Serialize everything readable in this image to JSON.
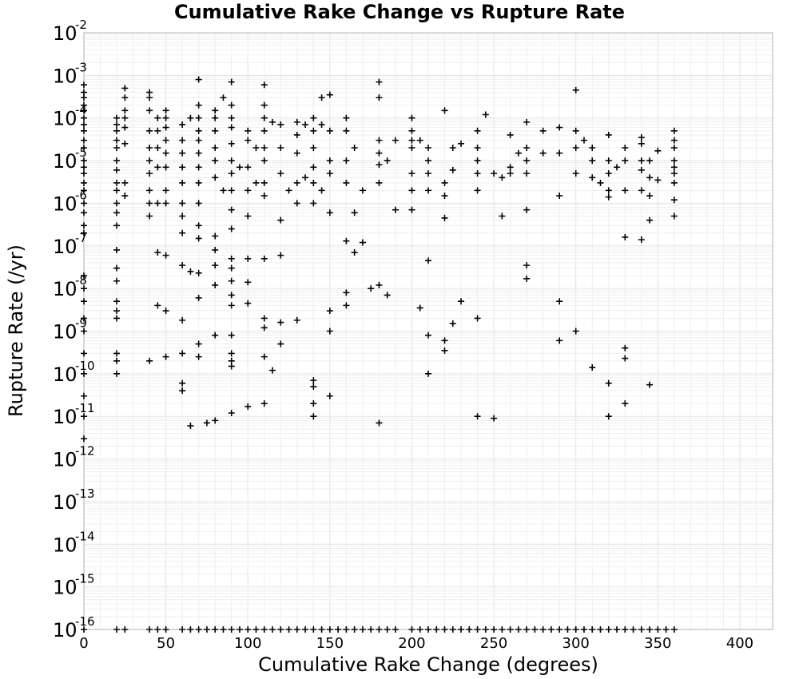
{
  "chart_data": {
    "type": "scatter",
    "title": "Cumulative Rake Change vs Rupture Rate",
    "xlabel": "Cumulative Rake Change (degrees)",
    "ylabel": "Rupture Rate (/yr)",
    "xlim": [
      0,
      420
    ],
    "ylim": [
      1e-16,
      0.01
    ],
    "y_scale": "log",
    "grid": true,
    "marker": "plus",
    "x_ticks": [
      "0",
      "50",
      "100",
      "150",
      "200",
      "250",
      "300",
      "350",
      "400"
    ],
    "y_ticks": [
      {
        "base": "10",
        "exp": "-16"
      },
      {
        "base": "10",
        "exp": "-15"
      },
      {
        "base": "10",
        "exp": "-14"
      },
      {
        "base": "10",
        "exp": "-13"
      },
      {
        "base": "10",
        "exp": "-12"
      },
      {
        "base": "10",
        "exp": "-11"
      },
      {
        "base": "10",
        "exp": "-10"
      },
      {
        "base": "10",
        "exp": "-9"
      },
      {
        "base": "10",
        "exp": "-8"
      },
      {
        "base": "10",
        "exp": "-7"
      },
      {
        "base": "10",
        "exp": "-6"
      },
      {
        "base": "10",
        "exp": "-5"
      },
      {
        "base": "10",
        "exp": "-4"
      },
      {
        "base": "10",
        "exp": "-3"
      },
      {
        "base": "10",
        "exp": "-2"
      }
    ],
    "points": [
      [
        0,
        0.0006
      ],
      [
        0,
        0.0004
      ],
      [
        0,
        0.0003
      ],
      [
        0,
        0.0002
      ],
      [
        0,
        0.00015
      ],
      [
        0,
        0.0001
      ],
      [
        0,
        7e-05
      ],
      [
        0,
        5e-05
      ],
      [
        0,
        3e-05
      ],
      [
        0,
        2e-05
      ],
      [
        0,
        1e-05
      ],
      [
        0,
        7e-06
      ],
      [
        0,
        5e-06
      ],
      [
        0,
        3e-06
      ],
      [
        0,
        2e-06
      ],
      [
        0,
        1e-06
      ],
      [
        0,
        6e-07
      ],
      [
        0,
        3e-07
      ],
      [
        0,
        2e-07
      ],
      [
        0,
        2e-08
      ],
      [
        0,
        1e-08
      ],
      [
        0,
        5e-09
      ],
      [
        0,
        2e-09
      ],
      [
        0,
        1e-09
      ],
      [
        0,
        3e-10
      ],
      [
        0,
        1e-10
      ],
      [
        0,
        3e-11
      ],
      [
        0,
        1e-11
      ],
      [
        0,
        3e-12
      ],
      [
        20,
        0.0001
      ],
      [
        20,
        7e-05
      ],
      [
        20,
        5e-05
      ],
      [
        20,
        3e-05
      ],
      [
        20,
        2e-05
      ],
      [
        20,
        1e-05
      ],
      [
        20,
        6e-06
      ],
      [
        20,
        3e-06
      ],
      [
        20,
        2e-06
      ],
      [
        20,
        1e-06
      ],
      [
        20,
        6e-07
      ],
      [
        20,
        3e-07
      ],
      [
        20,
        8e-08
      ],
      [
        20,
        3e-08
      ],
      [
        20,
        1.5e-08
      ],
      [
        20,
        5e-09
      ],
      [
        20,
        3e-09
      ],
      [
        20,
        2e-09
      ],
      [
        20,
        3e-10
      ],
      [
        20,
        2e-10
      ],
      [
        20,
        1e-10
      ],
      [
        25,
        0.0005
      ],
      [
        25,
        0.0003
      ],
      [
        25,
        0.00015
      ],
      [
        25,
        0.0001
      ],
      [
        25,
        6e-05
      ],
      [
        25,
        2.5e-05
      ],
      [
        25,
        3e-06
      ],
      [
        25,
        1.5e-06
      ],
      [
        40,
        0.0004
      ],
      [
        40,
        0.0003
      ],
      [
        40,
        0.00015
      ],
      [
        40,
        5e-05
      ],
      [
        40,
        2e-05
      ],
      [
        40,
        1e-05
      ],
      [
        40,
        5e-06
      ],
      [
        40,
        2e-06
      ],
      [
        40,
        1e-06
      ],
      [
        40,
        5e-07
      ],
      [
        40,
        2e-10
      ],
      [
        45,
        0.0001
      ],
      [
        45,
        5e-05
      ],
      [
        45,
        2e-05
      ],
      [
        45,
        7e-06
      ],
      [
        45,
        1e-06
      ],
      [
        45,
        7e-08
      ],
      [
        45,
        4e-09
      ],
      [
        50,
        0.00015
      ],
      [
        50,
        0.0001
      ],
      [
        50,
        6e-05
      ],
      [
        50,
        3e-05
      ],
      [
        50,
        1.5e-05
      ],
      [
        50,
        7e-06
      ],
      [
        50,
        2e-06
      ],
      [
        50,
        1e-06
      ],
      [
        50,
        6e-08
      ],
      [
        50,
        3e-09
      ],
      [
        50,
        2.5e-10
      ],
      [
        60,
        7e-05
      ],
      [
        60,
        3e-05
      ],
      [
        60,
        1.5e-05
      ],
      [
        60,
        7e-06
      ],
      [
        60,
        3e-06
      ],
      [
        60,
        1e-06
      ],
      [
        60,
        5e-07
      ],
      [
        60,
        2e-07
      ],
      [
        60,
        3.5e-08
      ],
      [
        60,
        1.8e-09
      ],
      [
        60,
        3e-10
      ],
      [
        60,
        6e-11
      ],
      [
        60,
        4e-11
      ],
      [
        65,
        0.0001
      ],
      [
        65,
        2.5e-08
      ],
      [
        65,
        6e-12
      ],
      [
        70,
        0.0008
      ],
      [
        70,
        0.0002
      ],
      [
        70,
        0.0001
      ],
      [
        70,
        5e-05
      ],
      [
        70,
        3e-05
      ],
      [
        70,
        1.5e-05
      ],
      [
        70,
        7e-06
      ],
      [
        70,
        3e-06
      ],
      [
        70,
        1e-06
      ],
      [
        70,
        3e-07
      ],
      [
        70,
        1.5e-07
      ],
      [
        70,
        2.3e-08
      ],
      [
        70,
        6e-09
      ],
      [
        70,
        5e-10
      ],
      [
        70,
        2.5e-10
      ],
      [
        75,
        7e-12
      ],
      [
        80,
        0.00015
      ],
      [
        80,
        0.0001
      ],
      [
        80,
        5e-05
      ],
      [
        80,
        2e-05
      ],
      [
        80,
        1e-05
      ],
      [
        80,
        4e-06
      ],
      [
        80,
        1.7e-07
      ],
      [
        80,
        8e-08
      ],
      [
        80,
        3.5e-08
      ],
      [
        80,
        1.2e-08
      ],
      [
        80,
        8e-10
      ],
      [
        80,
        8e-12
      ],
      [
        85,
        0.0003
      ],
      [
        85,
        2e-06
      ],
      [
        90,
        0.0007
      ],
      [
        90,
        0.0002
      ],
      [
        90,
        0.0001
      ],
      [
        90,
        6e-05
      ],
      [
        90,
        2.5e-05
      ],
      [
        90,
        1e-05
      ],
      [
        90,
        5e-06
      ],
      [
        90,
        2e-06
      ],
      [
        90,
        7e-07
      ],
      [
        90,
        2.5e-07
      ],
      [
        90,
        5e-08
      ],
      [
        90,
        3e-08
      ],
      [
        90,
        1.5e-08
      ],
      [
        90,
        7e-09
      ],
      [
        90,
        4e-09
      ],
      [
        90,
        8e-10
      ],
      [
        90,
        3e-10
      ],
      [
        90,
        2e-10
      ],
      [
        90,
        1.5e-10
      ],
      [
        90,
        1.2e-11
      ],
      [
        95,
        7e-06
      ],
      [
        100,
        5e-05
      ],
      [
        100,
        3e-05
      ],
      [
        100,
        7e-06
      ],
      [
        100,
        2e-06
      ],
      [
        100,
        5e-07
      ],
      [
        100,
        5e-08
      ],
      [
        100,
        1.4e-08
      ],
      [
        100,
        4.5e-09
      ],
      [
        100,
        1.7e-11
      ],
      [
        105,
        2e-05
      ],
      [
        105,
        3e-06
      ],
      [
        110,
        0.0006
      ],
      [
        110,
        0.0002
      ],
      [
        110,
        0.0001
      ],
      [
        110,
        5e-05
      ],
      [
        110,
        2e-05
      ],
      [
        110,
        1e-05
      ],
      [
        110,
        3e-06
      ],
      [
        110,
        1.5e-06
      ],
      [
        110,
        5e-08
      ],
      [
        110,
        2e-09
      ],
      [
        110,
        1.2e-09
      ],
      [
        110,
        2.5e-10
      ],
      [
        110,
        2e-11
      ],
      [
        115,
        8e-05
      ],
      [
        115,
        1.2e-10
      ],
      [
        120,
        7e-05
      ],
      [
        120,
        2e-05
      ],
      [
        120,
        5e-06
      ],
      [
        120,
        4e-07
      ],
      [
        120,
        6e-08
      ],
      [
        120,
        1.6e-09
      ],
      [
        120,
        5e-10
      ],
      [
        125,
        2e-06
      ],
      [
        130,
        8e-05
      ],
      [
        130,
        4e-05
      ],
      [
        130,
        1.5e-05
      ],
      [
        130,
        3e-06
      ],
      [
        130,
        1e-06
      ],
      [
        130,
        1.8e-09
      ],
      [
        135,
        7e-05
      ],
      [
        135,
        4e-06
      ],
      [
        140,
        0.0001
      ],
      [
        140,
        5e-05
      ],
      [
        140,
        2e-05
      ],
      [
        140,
        7e-06
      ],
      [
        140,
        3e-06
      ],
      [
        140,
        1e-06
      ],
      [
        140,
        7e-11
      ],
      [
        140,
        5e-11
      ],
      [
        140,
        2e-11
      ],
      [
        140,
        1e-11
      ],
      [
        145,
        0.0003
      ],
      [
        145,
        7e-05
      ],
      [
        145,
        2e-06
      ],
      [
        150,
        0.00035
      ],
      [
        150,
        5e-05
      ],
      [
        150,
        1e-05
      ],
      [
        150,
        5e-06
      ],
      [
        150,
        6e-07
      ],
      [
        150,
        3e-09
      ],
      [
        150,
        1e-09
      ],
      [
        150,
        3e-11
      ],
      [
        160,
        0.0001
      ],
      [
        160,
        5e-05
      ],
      [
        160,
        1e-05
      ],
      [
        160,
        3e-06
      ],
      [
        160,
        1.3e-07
      ],
      [
        160,
        8e-09
      ],
      [
        160,
        4e-09
      ],
      [
        165,
        2e-05
      ],
      [
        165,
        6e-07
      ],
      [
        165,
        7e-08
      ],
      [
        170,
        2e-06
      ],
      [
        170,
        1.2e-07
      ],
      [
        175,
        1e-08
      ],
      [
        180,
        0.0007
      ],
      [
        180,
        0.0003
      ],
      [
        180,
        3e-05
      ],
      [
        180,
        1.5e-05
      ],
      [
        180,
        8e-06
      ],
      [
        180,
        3e-06
      ],
      [
        180,
        1.2e-08
      ],
      [
        180,
        7e-12
      ],
      [
        185,
        1e-05
      ],
      [
        185,
        7e-09
      ],
      [
        190,
        3e-05
      ],
      [
        190,
        7e-07
      ],
      [
        200,
        0.0001
      ],
      [
        200,
        5e-05
      ],
      [
        200,
        3e-05
      ],
      [
        200,
        2e-05
      ],
      [
        200,
        5e-06
      ],
      [
        200,
        2e-06
      ],
      [
        200,
        7e-07
      ],
      [
        205,
        3e-05
      ],
      [
        205,
        3.5e-09
      ],
      [
        210,
        2e-05
      ],
      [
        210,
        1e-05
      ],
      [
        210,
        5e-06
      ],
      [
        210,
        2e-06
      ],
      [
        210,
        4.5e-08
      ],
      [
        210,
        8e-10
      ],
      [
        210,
        1e-10
      ],
      [
        220,
        0.00015
      ],
      [
        220,
        3e-06
      ],
      [
        220,
        1.5e-06
      ],
      [
        220,
        4.5e-07
      ],
      [
        220,
        6e-10
      ],
      [
        220,
        3.5e-10
      ],
      [
        225,
        2e-05
      ],
      [
        225,
        6e-06
      ],
      [
        225,
        1.5e-09
      ],
      [
        230,
        2.5e-05
      ],
      [
        230,
        5e-09
      ],
      [
        240,
        5e-05
      ],
      [
        240,
        2e-05
      ],
      [
        240,
        1e-05
      ],
      [
        240,
        5e-06
      ],
      [
        240,
        2e-06
      ],
      [
        240,
        2e-09
      ],
      [
        240,
        1e-11
      ],
      [
        245,
        0.00012
      ],
      [
        250,
        5e-06
      ],
      [
        250,
        9e-12
      ],
      [
        255,
        4e-06
      ],
      [
        255,
        5e-07
      ],
      [
        260,
        4e-05
      ],
      [
        260,
        7e-06
      ],
      [
        260,
        5e-06
      ],
      [
        265,
        1.5e-05
      ],
      [
        270,
        8e-05
      ],
      [
        270,
        2e-05
      ],
      [
        270,
        1e-05
      ],
      [
        270,
        5e-06
      ],
      [
        270,
        7e-07
      ],
      [
        270,
        3.5e-08
      ],
      [
        270,
        1.7e-08
      ],
      [
        280,
        5e-05
      ],
      [
        280,
        1.5e-05
      ],
      [
        290,
        6e-05
      ],
      [
        290,
        1.5e-05
      ],
      [
        290,
        1.5e-06
      ],
      [
        290,
        5e-09
      ],
      [
        290,
        6e-10
      ],
      [
        300,
        0.00045
      ],
      [
        300,
        5e-05
      ],
      [
        300,
        2e-05
      ],
      [
        300,
        5e-06
      ],
      [
        300,
        1e-09
      ],
      [
        305,
        3e-05
      ],
      [
        310,
        2e-05
      ],
      [
        310,
        1e-05
      ],
      [
        310,
        4e-06
      ],
      [
        310,
        1.4e-10
      ],
      [
        315,
        3e-06
      ],
      [
        320,
        4e-05
      ],
      [
        320,
        1e-05
      ],
      [
        320,
        5e-06
      ],
      [
        320,
        2e-06
      ],
      [
        320,
        1.4e-06
      ],
      [
        320,
        6e-11
      ],
      [
        320,
        1e-11
      ],
      [
        325,
        7e-06
      ],
      [
        330,
        2e-05
      ],
      [
        330,
        1e-05
      ],
      [
        330,
        2e-06
      ],
      [
        330,
        1.6e-07
      ],
      [
        330,
        4e-10
      ],
      [
        330,
        2.3e-10
      ],
      [
        330,
        2e-11
      ],
      [
        340,
        3.5e-05
      ],
      [
        340,
        2.5e-05
      ],
      [
        340,
        1e-05
      ],
      [
        340,
        6e-06
      ],
      [
        340,
        2e-06
      ],
      [
        340,
        1.4e-07
      ],
      [
        345,
        1e-05
      ],
      [
        345,
        4e-06
      ],
      [
        345,
        1.5e-06
      ],
      [
        345,
        4e-07
      ],
      [
        345,
        5.5e-11
      ],
      [
        350,
        1.7e-05
      ],
      [
        350,
        3.5e-06
      ],
      [
        360,
        5e-05
      ],
      [
        360,
        3e-05
      ],
      [
        360,
        2e-05
      ],
      [
        360,
        1e-05
      ],
      [
        360,
        7e-06
      ],
      [
        360,
        5e-06
      ],
      [
        360,
        3e-06
      ],
      [
        360,
        1.2e-06
      ],
      [
        360,
        5e-07
      ],
      [
        0,
        1e-16
      ],
      [
        20,
        1e-16
      ],
      [
        25,
        1e-16
      ],
      [
        40,
        1e-16
      ],
      [
        45,
        1e-16
      ],
      [
        50,
        1e-16
      ],
      [
        60,
        1e-16
      ],
      [
        65,
        1e-16
      ],
      [
        70,
        1e-16
      ],
      [
        75,
        1e-16
      ],
      [
        80,
        1e-16
      ],
      [
        85,
        1e-16
      ],
      [
        90,
        1e-16
      ],
      [
        95,
        1e-16
      ],
      [
        100,
        1e-16
      ],
      [
        105,
        1e-16
      ],
      [
        110,
        1e-16
      ],
      [
        115,
        1e-16
      ],
      [
        120,
        1e-16
      ],
      [
        125,
        1e-16
      ],
      [
        130,
        1e-16
      ],
      [
        135,
        1e-16
      ],
      [
        140,
        1e-16
      ],
      [
        145,
        1e-16
      ],
      [
        150,
        1e-16
      ],
      [
        155,
        1e-16
      ],
      [
        160,
        1e-16
      ],
      [
        165,
        1e-16
      ],
      [
        170,
        1e-16
      ],
      [
        175,
        1e-16
      ],
      [
        180,
        1e-16
      ],
      [
        185,
        1e-16
      ],
      [
        190,
        1e-16
      ],
      [
        200,
        1e-16
      ],
      [
        205,
        1e-16
      ],
      [
        210,
        1e-16
      ],
      [
        215,
        1e-16
      ],
      [
        220,
        1e-16
      ],
      [
        225,
        1e-16
      ],
      [
        230,
        1e-16
      ],
      [
        235,
        1e-16
      ],
      [
        240,
        1e-16
      ],
      [
        245,
        1e-16
      ],
      [
        250,
        1e-16
      ],
      [
        255,
        1e-16
      ],
      [
        260,
        1e-16
      ],
      [
        265,
        1e-16
      ],
      [
        270,
        1e-16
      ],
      [
        275,
        1e-16
      ],
      [
        280,
        1e-16
      ],
      [
        285,
        1e-16
      ],
      [
        290,
        1e-16
      ],
      [
        295,
        1e-16
      ],
      [
        300,
        1e-16
      ],
      [
        305,
        1e-16
      ],
      [
        310,
        1e-16
      ],
      [
        315,
        1e-16
      ],
      [
        320,
        1e-16
      ],
      [
        325,
        1e-16
      ],
      [
        330,
        1e-16
      ],
      [
        335,
        1e-16
      ],
      [
        340,
        1e-16
      ],
      [
        345,
        1e-16
      ],
      [
        350,
        1e-16
      ],
      [
        355,
        1e-16
      ],
      [
        360,
        1e-16
      ]
    ]
  }
}
